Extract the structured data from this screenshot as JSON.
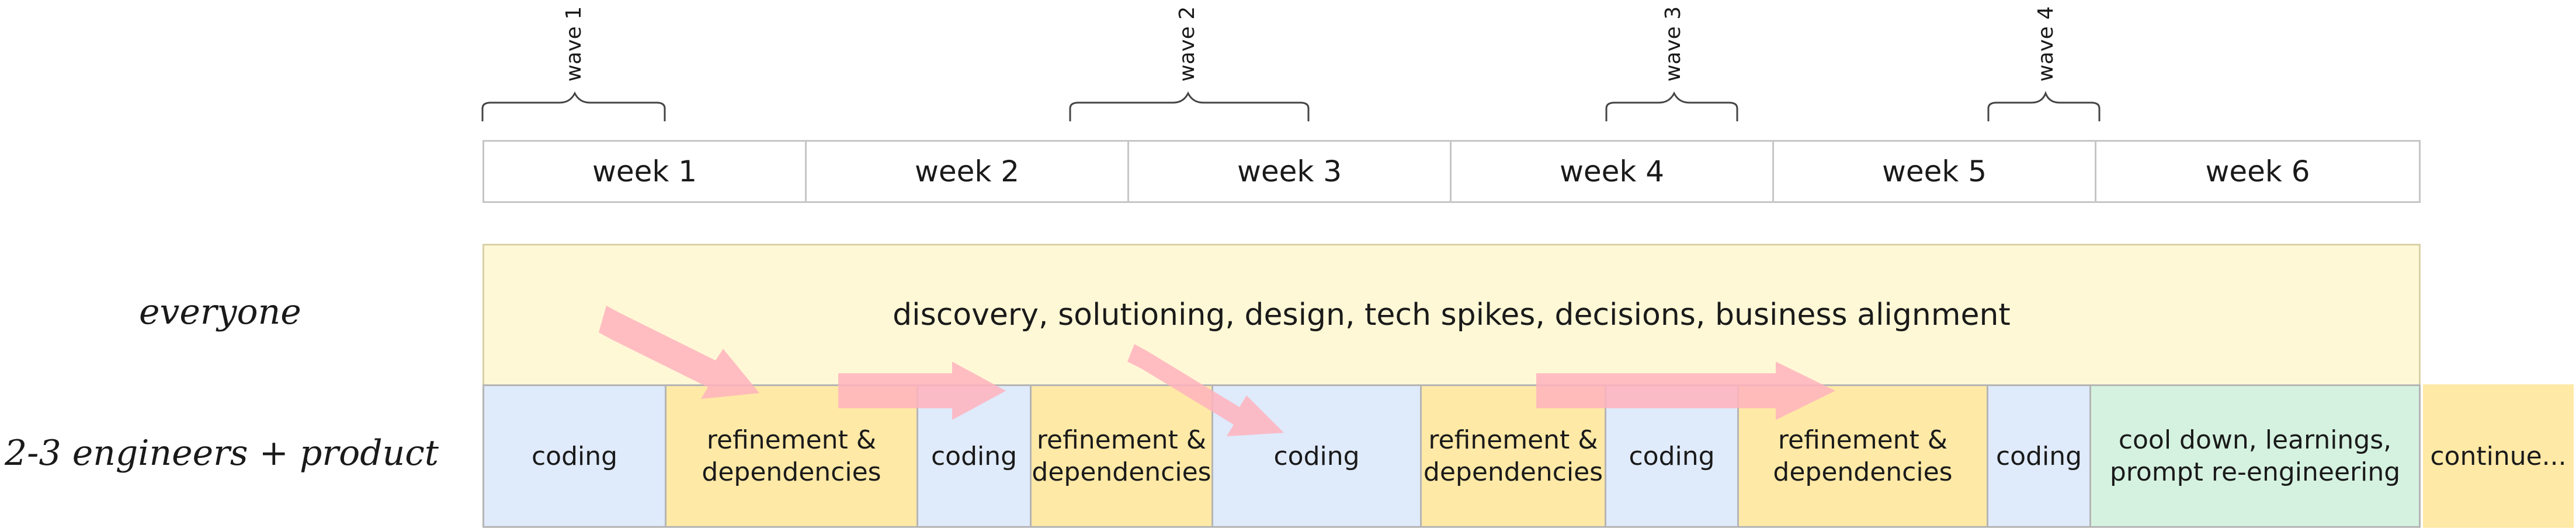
{
  "waves": [
    "wave 1",
    "wave 2",
    "wave 3",
    "wave 4"
  ],
  "weeks": [
    "week 1",
    "week 2",
    "week 3",
    "week 4",
    "week 5",
    "week 6"
  ],
  "rows": {
    "everyone": {
      "label": "everyone",
      "text": "discovery, solutioning, design, tech spikes, decisions, business alignment"
    },
    "team": {
      "label": "2-3 engineers + product",
      "segments": [
        {
          "type": "coding",
          "text": "coding"
        },
        {
          "type": "refinement",
          "text": "refinement &\ndependencies"
        },
        {
          "type": "coding",
          "text": "coding"
        },
        {
          "type": "refinement",
          "text": "refinement &\ndependencies"
        },
        {
          "type": "coding",
          "text": "coding"
        },
        {
          "type": "refinement",
          "text": "refinement &\ndependencies"
        },
        {
          "type": "coding",
          "text": "coding"
        },
        {
          "type": "refinement",
          "text": "refinement &\ndependencies"
        },
        {
          "type": "coding",
          "text": "coding"
        },
        {
          "type": "cooldown",
          "text": "cool down, learnings,\nprompt re-engineering"
        },
        {
          "type": "continue",
          "text": "continue..."
        }
      ]
    }
  },
  "colors": {
    "coding": "#dfeafb",
    "refinement": "#ffe9a6",
    "cooldown": "#d5f2e0",
    "band": "#fff8d6",
    "arrow": "#ffb3bd"
  }
}
